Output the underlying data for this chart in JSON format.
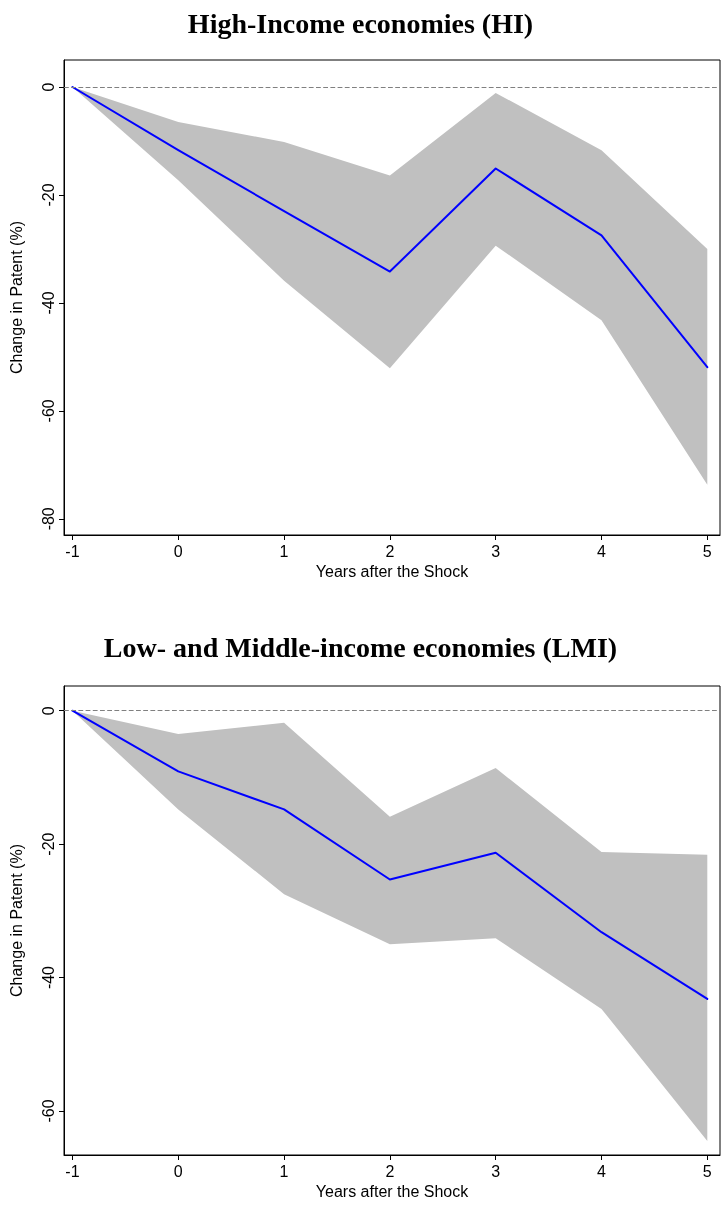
{
  "chart_data": [
    {
      "type": "line",
      "title": "High-Income economies (HI)",
      "xlabel": "Years after the Shock",
      "ylabel": "Change in Patent (%)",
      "x": [
        -1,
        0,
        1,
        2,
        3,
        4,
        5
      ],
      "series": [
        {
          "color": "#0000ff",
          "values": [
            0,
            -11.7,
            -23,
            -34.2,
            -15.1,
            -27.5,
            -51.9
          ],
          "lower": [
            0,
            -17.3,
            -35.9,
            -52.1,
            -29.4,
            -43.2,
            -73.7
          ],
          "upper": [
            0,
            -6.5,
            -10.2,
            -16.4,
            -1.1,
            -11.7,
            -30
          ]
        }
      ],
      "xlim": [
        -1.08,
        5.12
      ],
      "xticks": [
        -1,
        0,
        1,
        2,
        3,
        4,
        5
      ],
      "ylim": [
        -83,
        5
      ],
      "yticks": [
        0,
        -20,
        -40,
        -60,
        -80
      ],
      "ref_lines": [
        {
          "axis": "y",
          "value": 0,
          "color": "#808080",
          "line_style": "dashed"
        }
      ],
      "grid": false,
      "legend": false,
      "marker": "none",
      "line_style": "solid"
    },
    {
      "type": "line",
      "title": "Low- and Middle-income economies (LMI)",
      "xlabel": "Years after the Shock",
      "ylabel": "Change in Patent (%)",
      "x": [
        -1,
        0,
        1,
        2,
        3,
        4,
        5
      ],
      "series": [
        {
          "color": "#0000ff",
          "values": [
            0,
            -9.1,
            -14.8,
            -25.3,
            -21.3,
            -33.2,
            -43.2
          ],
          "lower": [
            0,
            -14.8,
            -27.5,
            -35,
            -34.1,
            -44.7,
            -64.5
          ],
          "upper": [
            0,
            -3.5,
            -1.8,
            -15.9,
            -8.6,
            -21.2,
            -21.6
          ]
        }
      ],
      "xlim": [
        -1.08,
        5.12
      ],
      "xticks": [
        -1,
        0,
        1,
        2,
        3,
        4,
        5
      ],
      "ylim": [
        -66.6,
        3.7
      ],
      "yticks": [
        0,
        -20,
        -40,
        -60
      ],
      "ref_lines": [
        {
          "axis": "y",
          "value": 0,
          "color": "#808080",
          "line_style": "dashed"
        }
      ],
      "grid": false,
      "legend": false,
      "marker": "none",
      "line_style": "solid"
    }
  ]
}
